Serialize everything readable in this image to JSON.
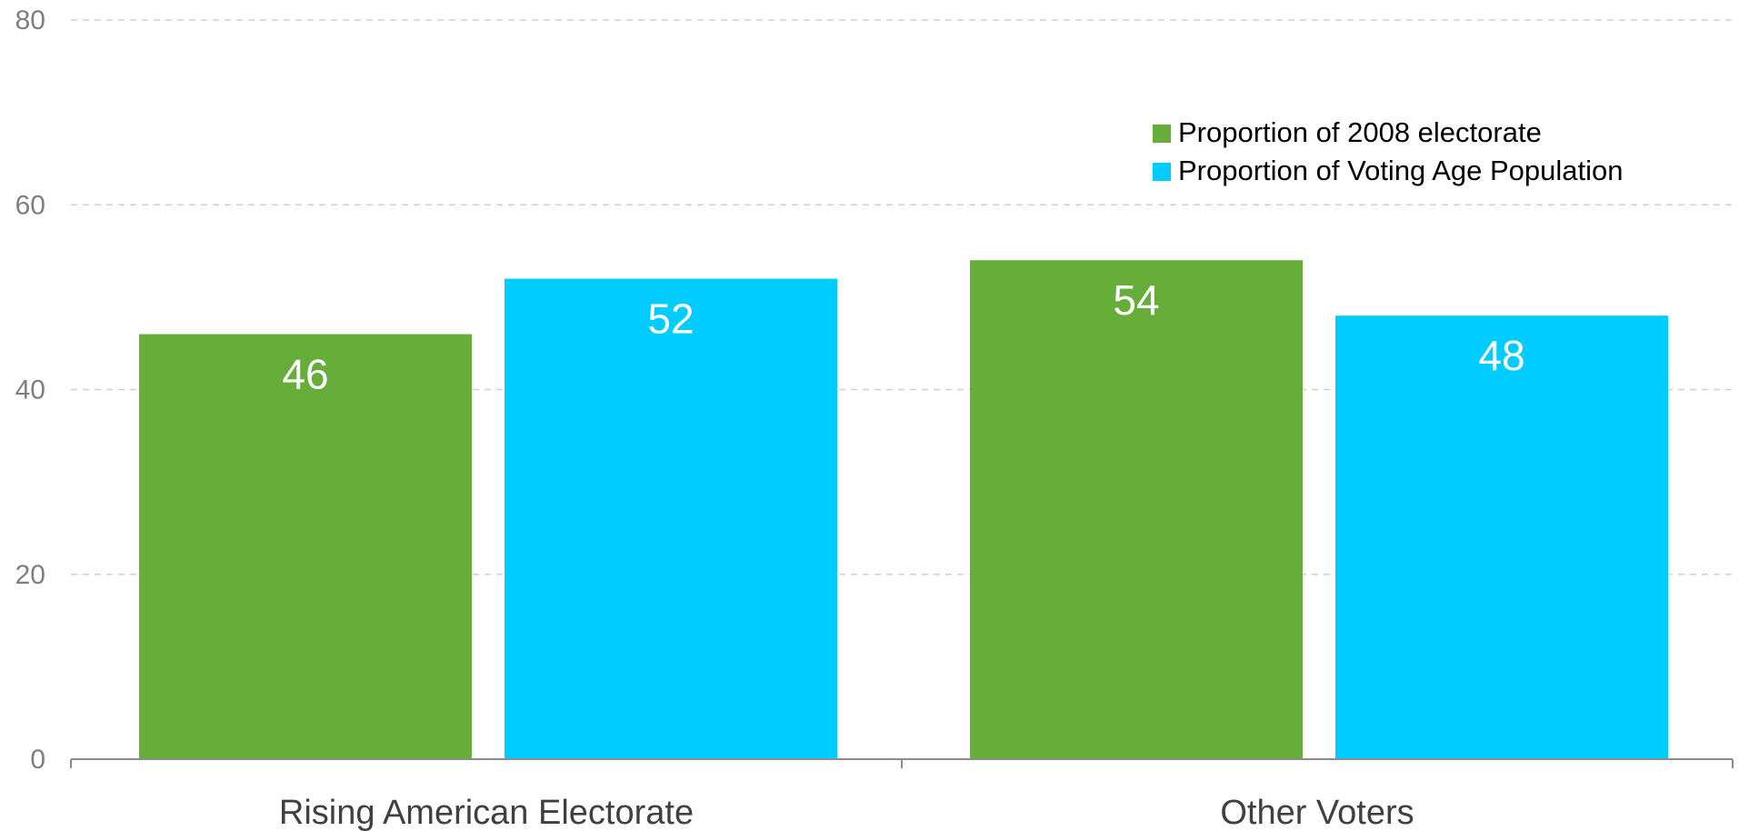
{
  "chart_data": {
    "type": "bar",
    "categories": [
      "Rising American Electorate",
      "Other Voters"
    ],
    "series": [
      {
        "name": "Proportion of 2008 electorate",
        "values": [
          46,
          54
        ],
        "color": "#66ad3a"
      },
      {
        "name": "Proportion of Voting Age Population",
        "values": [
          52,
          48
        ],
        "color": "#00ccff"
      }
    ],
    "ylim": [
      0,
      80
    ],
    "yticks": [
      0,
      20,
      40,
      60,
      80
    ],
    "grid": true,
    "legend": "top-right",
    "data_labels": true
  }
}
